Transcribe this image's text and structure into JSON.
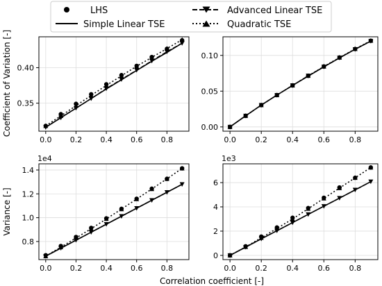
{
  "legend": {
    "placement": "top-center",
    "entries": [
      {
        "label": "LHS",
        "key": "lhs"
      },
      {
        "label": "Advanced Linear TSE",
        "key": "adv"
      },
      {
        "label": "Simple Linear TSE",
        "key": "simple"
      },
      {
        "label": "Quadratic TSE",
        "key": "quad"
      }
    ]
  },
  "shared": {
    "xlabel": "Correlation coefficient [-]"
  },
  "chart_data": [
    {
      "type": "line",
      "ylabel": "Coefficient of Variation [-]",
      "offset_text": "",
      "grid": true,
      "xlim": [
        -0.045,
        0.945
      ],
      "ylim": [
        0.3105,
        0.4435
      ],
      "xticks": [
        0.0,
        0.2,
        0.4,
        0.6,
        0.8
      ],
      "xtick_labels": [
        "0.0",
        "0.2",
        "0.4",
        "0.6",
        "0.8"
      ],
      "yticks": [
        0.35,
        0.4
      ],
      "ytick_labels": [
        "0.35",
        "0.40"
      ],
      "x": [
        0.0,
        0.1,
        0.2,
        0.3,
        0.4,
        0.5,
        0.6,
        0.7,
        0.8,
        0.9
      ],
      "series": [
        {
          "name": "LHS",
          "key": "lhs",
          "values": [
            0.318,
            0.3345,
            0.349,
            0.3625,
            0.3765,
            0.3895,
            0.4025,
            0.415,
            0.4265,
            0.4385
          ]
        },
        {
          "name": "Advanced Linear TSE",
          "key": "adv",
          "values": [
            0.316,
            0.3295,
            0.343,
            0.3565,
            0.3705,
            0.3835,
            0.3965,
            0.4095,
            0.4225,
            0.4345
          ]
        },
        {
          "name": "Simple Linear TSE",
          "key": "simple",
          "values": [
            0.316,
            0.3295,
            0.343,
            0.3565,
            0.37,
            0.383,
            0.396,
            0.409,
            0.4215,
            0.4345
          ]
        },
        {
          "name": "Quadratic TSE",
          "key": "quad",
          "values": [
            0.318,
            0.332,
            0.3465,
            0.361,
            0.375,
            0.3885,
            0.402,
            0.4145,
            0.427,
            0.4395
          ]
        }
      ]
    },
    {
      "type": "line",
      "ylabel": "",
      "offset_text": "",
      "grid": true,
      "xlim": [
        -0.045,
        0.945
      ],
      "ylim": [
        -0.006,
        0.126
      ],
      "xticks": [
        0.0,
        0.2,
        0.4,
        0.6,
        0.8
      ],
      "xtick_labels": [
        "0.0",
        "0.2",
        "0.4",
        "0.6",
        "0.8"
      ],
      "yticks": [
        0.0,
        0.05,
        0.1
      ],
      "ytick_labels": [
        "0.00",
        "0.05",
        "0.10"
      ],
      "x": [
        0.0,
        0.1,
        0.2,
        0.3,
        0.4,
        0.5,
        0.6,
        0.7,
        0.8,
        0.9
      ],
      "series": [
        {
          "name": "LHS",
          "key": "lhs",
          "values": [
            0.0,
            0.0155,
            0.0305,
            0.0445,
            0.058,
            0.0715,
            0.0845,
            0.097,
            0.109,
            0.1205
          ]
        },
        {
          "name": "Advanced Linear TSE",
          "key": "adv",
          "values": [
            0.0,
            0.0155,
            0.0305,
            0.0445,
            0.058,
            0.0715,
            0.084,
            0.0965,
            0.1085,
            0.12
          ]
        },
        {
          "name": "Simple Linear TSE",
          "key": "simple",
          "values": [
            0.0,
            0.0155,
            0.0305,
            0.0445,
            0.058,
            0.071,
            0.084,
            0.0965,
            0.1085,
            0.12
          ]
        },
        {
          "name": "Quadratic TSE",
          "key": "quad",
          "values": [
            0.0,
            0.0155,
            0.0305,
            0.0445,
            0.058,
            0.0715,
            0.0845,
            0.097,
            0.109,
            0.1205
          ]
        }
      ]
    },
    {
      "type": "line",
      "ylabel": "Variance [-]",
      "offset_text": "1e4",
      "grid": true,
      "xlim": [
        -0.045,
        0.945
      ],
      "ylim": [
        0.648,
        1.452
      ],
      "xticks": [
        0.0,
        0.2,
        0.4,
        0.6,
        0.8
      ],
      "xtick_labels": [
        "0.0",
        "0.2",
        "0.4",
        "0.6",
        "0.8"
      ],
      "yticks": [
        0.8,
        1.0,
        1.2,
        1.4
      ],
      "ytick_labels": [
        "0.8",
        "1.0",
        "1.2",
        "1.4"
      ],
      "x": [
        0.0,
        0.1,
        0.2,
        0.3,
        0.4,
        0.5,
        0.6,
        0.7,
        0.8,
        0.9
      ],
      "series": [
        {
          "name": "LHS",
          "key": "lhs",
          "values": [
            0.685,
            0.762,
            0.838,
            0.914,
            0.994,
            1.074,
            1.159,
            1.243,
            1.326,
            1.414
          ]
        },
        {
          "name": "Advanced Linear TSE",
          "key": "adv",
          "values": [
            0.677,
            0.744,
            0.811,
            0.878,
            0.945,
            1.012,
            1.079,
            1.146,
            1.213,
            1.28
          ]
        },
        {
          "name": "Simple Linear TSE",
          "key": "simple",
          "values": [
            0.677,
            0.744,
            0.811,
            0.878,
            0.945,
            1.012,
            1.079,
            1.146,
            1.213,
            1.28
          ]
        },
        {
          "name": "Quadratic TSE",
          "key": "quad",
          "values": [
            0.677,
            0.753,
            0.83,
            0.907,
            0.99,
            1.072,
            1.156,
            1.241,
            1.326,
            1.414
          ]
        }
      ]
    },
    {
      "type": "line",
      "ylabel": "",
      "offset_text": "1e3",
      "grid": true,
      "xlim": [
        -0.045,
        0.945
      ],
      "ylim": [
        -0.35,
        7.55
      ],
      "xticks": [
        0.0,
        0.2,
        0.4,
        0.6,
        0.8
      ],
      "xtick_labels": [
        "0.0",
        "0.2",
        "0.4",
        "0.6",
        "0.8"
      ],
      "yticks": [
        0,
        2,
        4,
        6
      ],
      "ytick_labels": [
        "0",
        "2",
        "4",
        "6"
      ],
      "x": [
        0.0,
        0.1,
        0.2,
        0.3,
        0.4,
        0.5,
        0.6,
        0.7,
        0.8,
        0.9
      ],
      "series": [
        {
          "name": "LHS",
          "key": "lhs",
          "values": [
            0.0,
            0.75,
            1.55,
            2.3,
            3.1,
            3.9,
            4.75,
            5.6,
            6.4,
            7.25
          ]
        },
        {
          "name": "Advanced Linear TSE",
          "key": "adv",
          "values": [
            0.0,
            0.68,
            1.36,
            2.03,
            2.7,
            3.38,
            4.05,
            4.72,
            5.4,
            6.08
          ]
        },
        {
          "name": "Simple Linear TSE",
          "key": "simple",
          "values": [
            0.0,
            0.68,
            1.36,
            2.03,
            2.7,
            3.38,
            4.05,
            4.72,
            5.4,
            6.08
          ]
        },
        {
          "name": "Quadratic TSE",
          "key": "quad",
          "values": [
            0.0,
            0.7,
            1.45,
            2.22,
            3.0,
            3.85,
            4.7,
            5.55,
            6.4,
            7.25
          ]
        }
      ]
    }
  ]
}
